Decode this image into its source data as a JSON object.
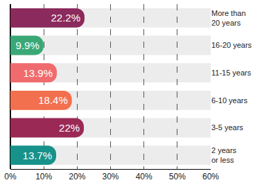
{
  "chart_data": {
    "type": "bar",
    "orientation": "horizontal",
    "categories": [
      "More than 20 years",
      "16-20 years",
      "11-15 years",
      "6-10 years",
      "3-5 years",
      "2 years or less"
    ],
    "values": [
      22.2,
      9.9,
      13.9,
      18.4,
      22,
      13.7
    ],
    "value_labels": [
      "22.2%",
      "9.9%",
      "13.9%",
      "18.4%",
      "22%",
      "13.7%"
    ],
    "colors": [
      "#8b2a5c",
      "#3aa876",
      "#f06b6e",
      "#f2704d",
      "#9a2a55",
      "#17928b"
    ],
    "xlim": [
      0,
      60
    ],
    "xticks": [
      {
        "value": 0,
        "label": "0%"
      },
      {
        "value": 10,
        "label": "10%"
      },
      {
        "value": 20,
        "label": "20%"
      },
      {
        "value": 30,
        "label": "30%"
      },
      {
        "value": 40,
        "label": "40%"
      },
      {
        "value": 50,
        "label": "50%"
      },
      {
        "value": 60,
        "label": "60%"
      }
    ],
    "grid": true,
    "data_labels": true
  }
}
